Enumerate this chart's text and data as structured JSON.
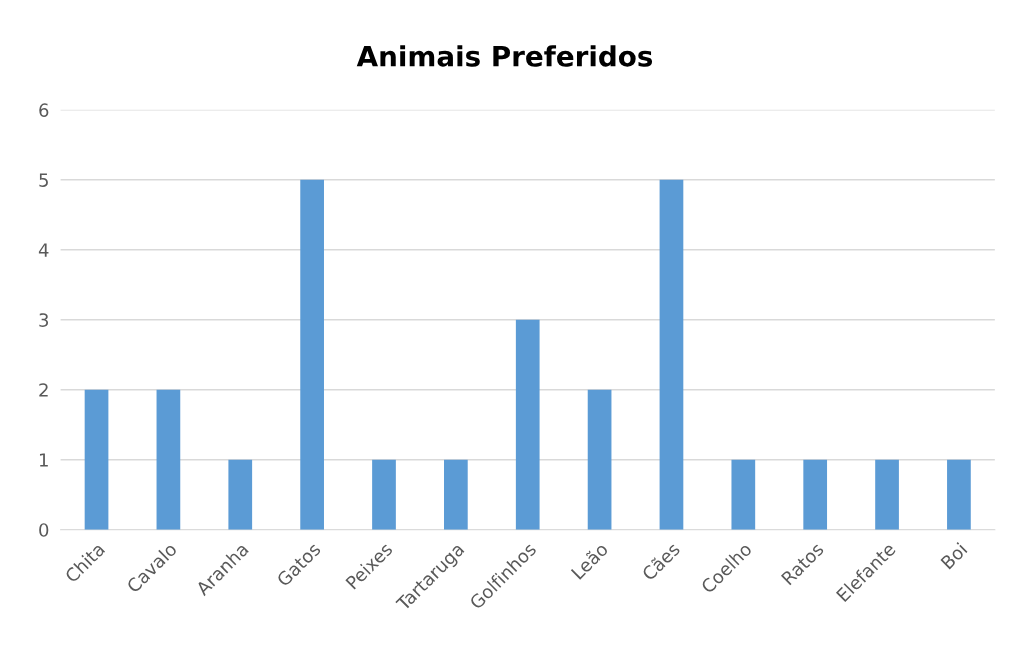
{
  "chart_data": {
    "type": "bar",
    "title": "Animais Preferidos",
    "categories": [
      "Chita",
      "Cavalo",
      "Aranha",
      "Gatos",
      "Peixes",
      "Tartaruga",
      "Golfinhos",
      "Leão",
      "Cães",
      "Coelho",
      "Ratos",
      "Elefante",
      "Boi"
    ],
    "values": [
      2,
      2,
      1,
      5,
      1,
      1,
      3,
      2,
      5,
      1,
      1,
      1,
      1
    ],
    "color": "#5b9bd5",
    "ylim": [
      0,
      6
    ],
    "yticks": [
      0,
      1,
      2,
      3,
      4,
      5,
      6
    ],
    "grid": "y"
  }
}
